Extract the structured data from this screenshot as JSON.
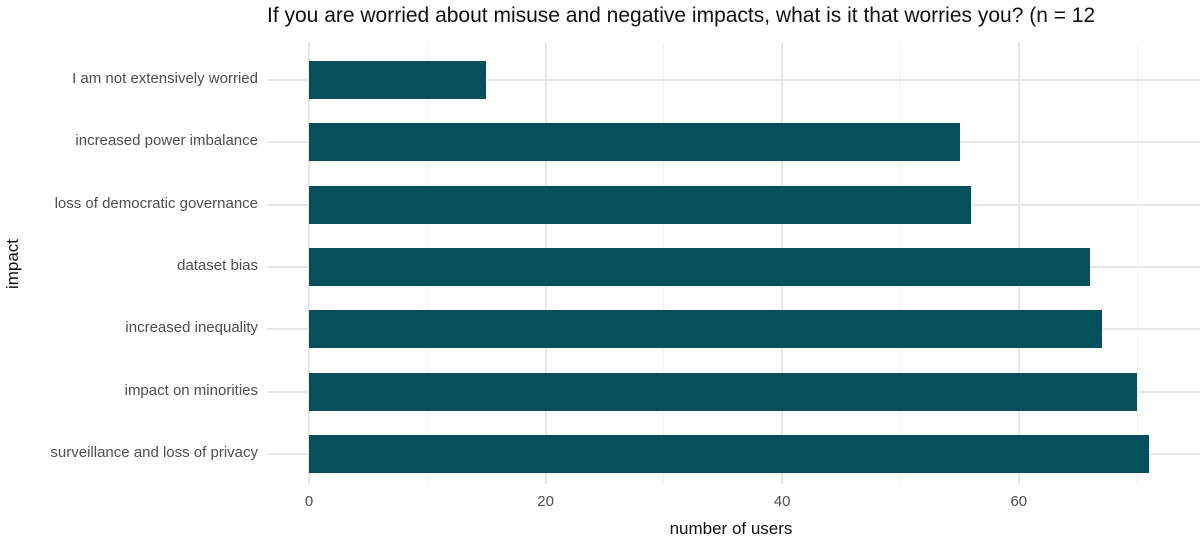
{
  "chart_data": {
    "type": "bar",
    "orientation": "horizontal",
    "title": "If you are worried about misuse and negative impacts, what is it that worries you? (n = 12",
    "title_truncated_at_right_edge": true,
    "xlabel": "number of users",
    "ylabel": "impact",
    "categories": [
      "I am not extensively worried",
      "increased power imbalance",
      "loss of democratic governance",
      "dataset bias",
      "increased inequality",
      "impact on minorities",
      "surveillance and loss of privacy"
    ],
    "values": [
      15,
      55,
      56,
      66,
      67,
      70,
      71
    ],
    "x_ticks": [
      0,
      20,
      40,
      60
    ],
    "x_minor_gridlines": [
      10,
      30,
      50,
      70
    ],
    "xlim": [
      0,
      75
    ],
    "grid": "major and minor vertical, major horizontal per category",
    "legend": "none",
    "colors": {
      "bar": "#05505a",
      "grid_major": "#e7e7e7",
      "grid_minor": "#f0f0f0",
      "axis_text": "#4d4d4d",
      "title_text": "#111111",
      "background": "#ffffff"
    }
  }
}
